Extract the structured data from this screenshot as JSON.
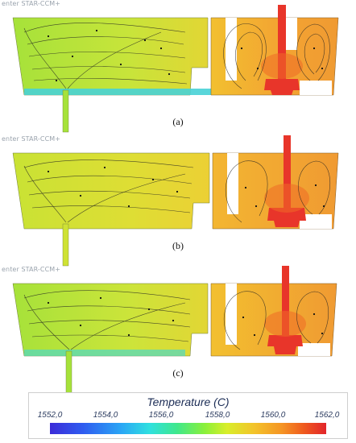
{
  "watermark": "enter STAR-CCM+",
  "panels": [
    {
      "id": "a",
      "caption": "(a)"
    },
    {
      "id": "b",
      "caption": "(b)"
    },
    {
      "id": "c",
      "caption": "(c)"
    }
  ],
  "legend": {
    "title": "Temperature (C)",
    "ticks": [
      "1552,0",
      "1554,0",
      "1556,0",
      "1558,0",
      "1560,0",
      "1562,0"
    ],
    "colors": {
      "low": "#3b2bd8",
      "mid_low": "#2fe0e0",
      "mid": "#8af03a",
      "mid_high": "#f3c32a",
      "high": "#e2242b"
    }
  },
  "colors": {
    "left_chamber": "#b8e03a",
    "right_chamber": "#f0a030",
    "stopper": "#e8352a",
    "streamline": "#222222"
  }
}
